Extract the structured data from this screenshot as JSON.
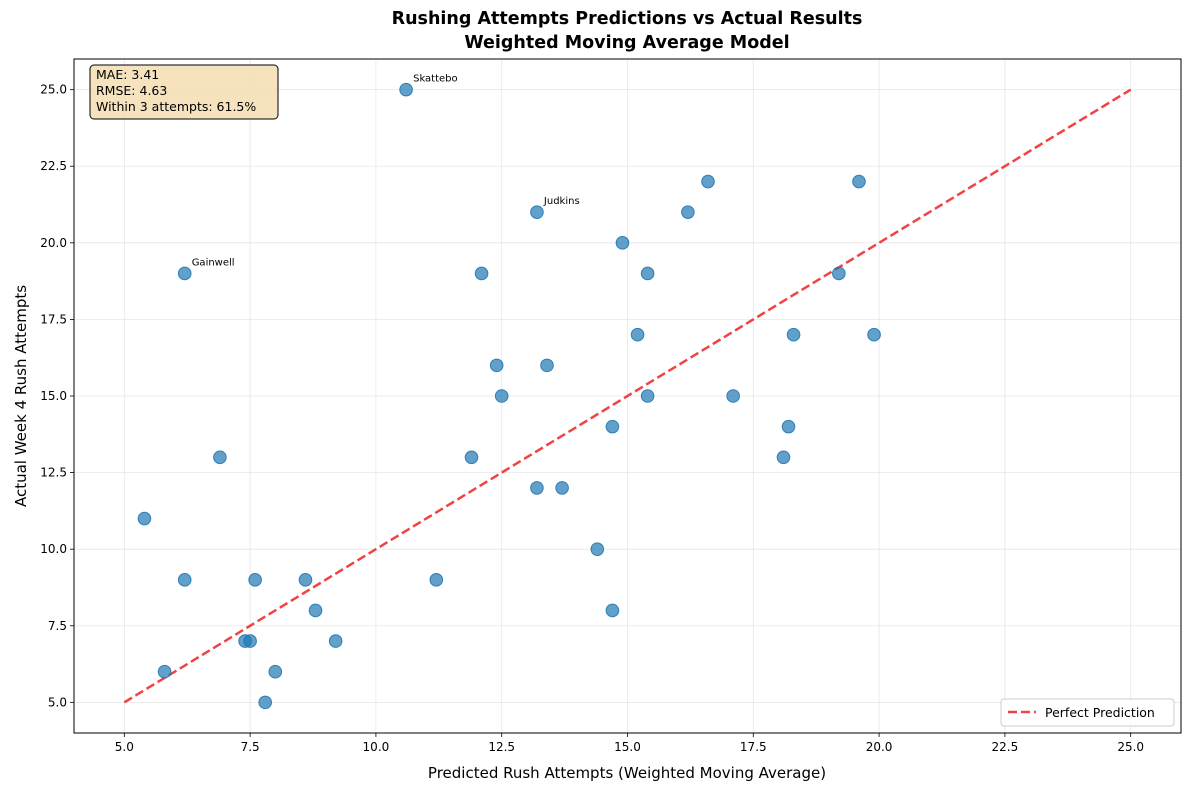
{
  "chart_data": {
    "type": "scatter",
    "title_line1": "Rushing Attempts Predictions vs Actual Results",
    "title_line2": "Weighted Moving Average Model",
    "xlabel": "Predicted Rush Attempts (Weighted Moving Average)",
    "ylabel": "Actual Week 4 Rush Attempts",
    "xlim": [
      4.0,
      26.0
    ],
    "ylim": [
      4.0,
      26.0
    ],
    "xticks": [
      5.0,
      7.5,
      10.0,
      12.5,
      15.0,
      17.5,
      20.0,
      22.5,
      25.0
    ],
    "xtick_labels": [
      "5.0",
      "7.5",
      "10.0",
      "12.5",
      "15.0",
      "17.5",
      "20.0",
      "22.5",
      "25.0"
    ],
    "yticks": [
      5.0,
      7.5,
      10.0,
      12.5,
      15.0,
      17.5,
      20.0,
      22.5,
      25.0
    ],
    "ytick_labels": [
      "5.0",
      "7.5",
      "10.0",
      "12.5",
      "15.0",
      "17.5",
      "20.0",
      "22.5",
      "25.0"
    ],
    "grid": true,
    "legend_placement": "lower-right",
    "point_color": "#1f77b4",
    "line_color": "#ee2222",
    "points": [
      {
        "x": 10.6,
        "y": 25.0
      },
      {
        "x": 13.2,
        "y": 21.0
      },
      {
        "x": 6.2,
        "y": 19.0
      },
      {
        "x": 12.1,
        "y": 19.0
      },
      {
        "x": 14.9,
        "y": 20.0
      },
      {
        "x": 16.6,
        "y": 22.0
      },
      {
        "x": 16.2,
        "y": 21.0
      },
      {
        "x": 15.4,
        "y": 19.0
      },
      {
        "x": 19.6,
        "y": 22.0
      },
      {
        "x": 19.2,
        "y": 19.0
      },
      {
        "x": 15.2,
        "y": 17.0
      },
      {
        "x": 18.3,
        "y": 17.0
      },
      {
        "x": 19.9,
        "y": 17.0
      },
      {
        "x": 12.4,
        "y": 16.0
      },
      {
        "x": 13.4,
        "y": 16.0
      },
      {
        "x": 12.5,
        "y": 15.0
      },
      {
        "x": 15.4,
        "y": 15.0
      },
      {
        "x": 17.1,
        "y": 15.0
      },
      {
        "x": 14.7,
        "y": 14.0
      },
      {
        "x": 18.2,
        "y": 14.0
      },
      {
        "x": 6.9,
        "y": 13.0
      },
      {
        "x": 11.9,
        "y": 13.0
      },
      {
        "x": 18.1,
        "y": 13.0
      },
      {
        "x": 13.2,
        "y": 12.0
      },
      {
        "x": 13.7,
        "y": 12.0
      },
      {
        "x": 5.4,
        "y": 11.0
      },
      {
        "x": 14.4,
        "y": 10.0
      },
      {
        "x": 6.2,
        "y": 9.0
      },
      {
        "x": 7.6,
        "y": 9.0
      },
      {
        "x": 8.6,
        "y": 9.0
      },
      {
        "x": 11.2,
        "y": 9.0
      },
      {
        "x": 8.8,
        "y": 8.0
      },
      {
        "x": 14.7,
        "y": 8.0
      },
      {
        "x": 7.4,
        "y": 7.0
      },
      {
        "x": 7.5,
        "y": 7.0
      },
      {
        "x": 9.2,
        "y": 7.0
      },
      {
        "x": 5.8,
        "y": 6.0
      },
      {
        "x": 8.0,
        "y": 6.0
      },
      {
        "x": 7.8,
        "y": 5.0
      }
    ],
    "annotations": [
      {
        "text": "Skattebo",
        "x": 10.6,
        "y": 25.0
      },
      {
        "text": "Judkins",
        "x": 13.2,
        "y": 21.0
      },
      {
        "text": "Gainwell",
        "x": 6.2,
        "y": 19.0
      }
    ],
    "reference_line": {
      "name": "Perfect Prediction",
      "x": [
        5.0,
        25.0
      ],
      "y": [
        5.0,
        25.0
      ]
    },
    "stats_box": [
      "MAE: 3.41",
      "RMSE: 4.63",
      "Within 3 attempts: 61.5%"
    ]
  }
}
